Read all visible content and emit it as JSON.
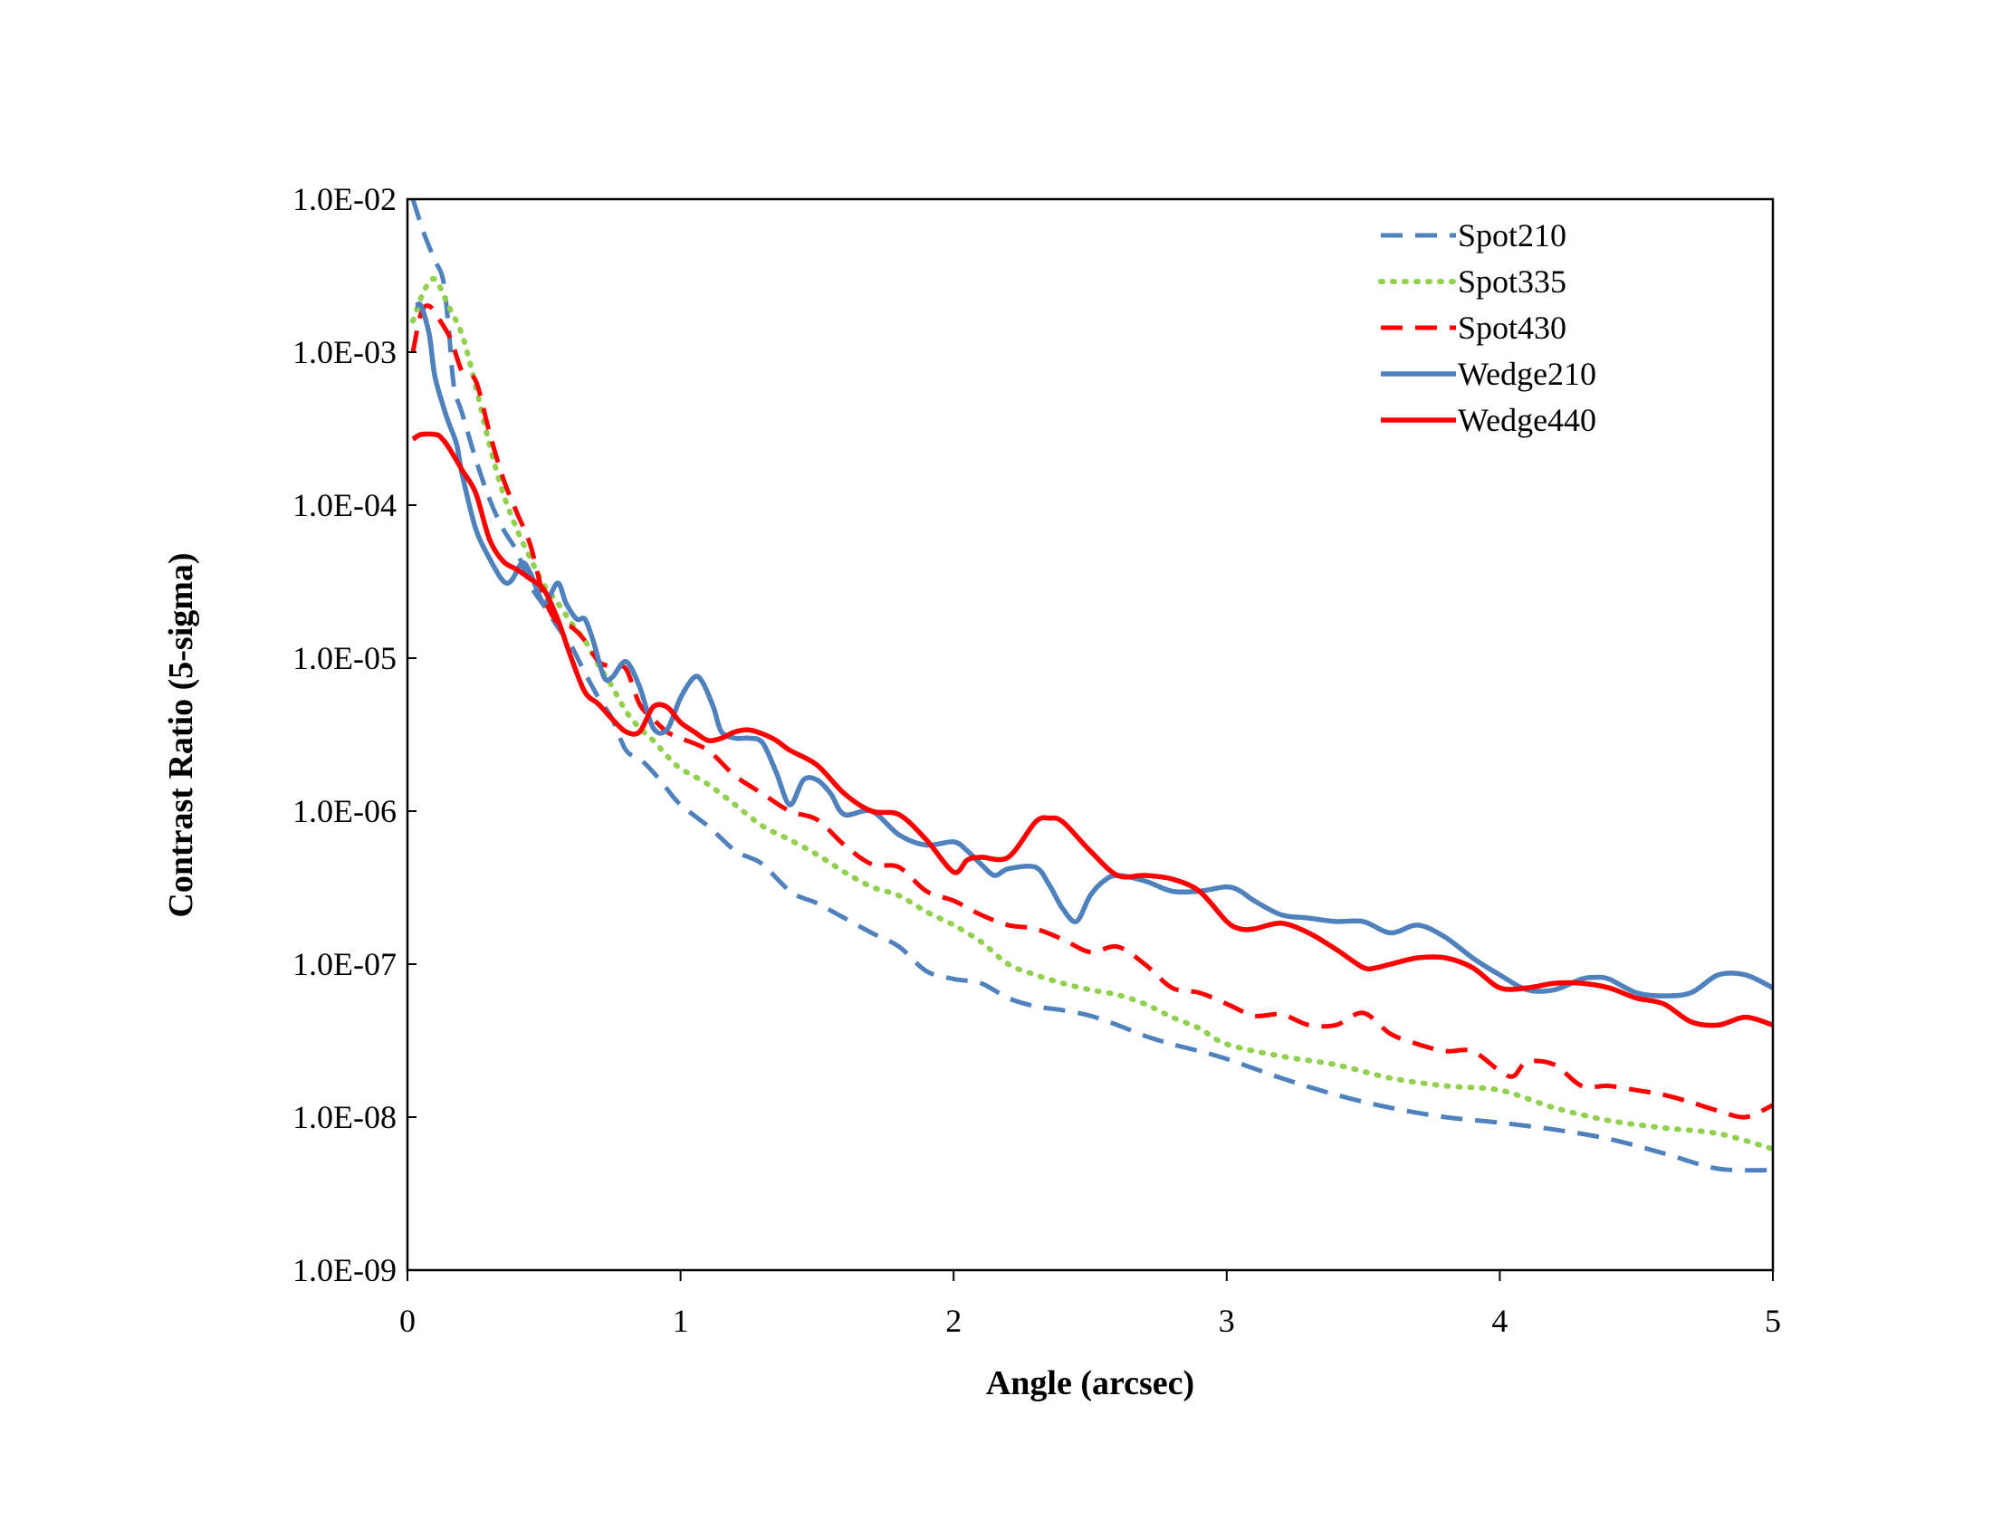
{
  "chart_data": {
    "type": "line",
    "title": "",
    "xlabel": "Angle (arcsec)",
    "ylabel": "Contrast Ratio (5-sigma)",
    "xlim": [
      0,
      5
    ],
    "ylim": [
      1e-09,
      0.01
    ],
    "yscale": "log",
    "grid": false,
    "legend_position": "top-right",
    "x_ticks": [
      {
        "value": 0,
        "label": "0"
      },
      {
        "value": 1,
        "label": "1"
      },
      {
        "value": 2,
        "label": "2"
      },
      {
        "value": 3,
        "label": "3"
      },
      {
        "value": 4,
        "label": "4"
      },
      {
        "value": 5,
        "label": "5"
      }
    ],
    "y_ticks": [
      {
        "value": 0.01,
        "label": "1.0E-02"
      },
      {
        "value": 0.001,
        "label": "1.0E-03"
      },
      {
        "value": 0.0001,
        "label": "1.0E-04"
      },
      {
        "value": 1e-05,
        "label": "1.0E-05"
      },
      {
        "value": 1e-06,
        "label": "1.0E-06"
      },
      {
        "value": 1e-07,
        "label": "1.0E-07"
      },
      {
        "value": 1e-08,
        "label": "1.0E-08"
      },
      {
        "value": 1e-09,
        "label": "1.0E-09"
      }
    ],
    "series": [
      {
        "name": "Spot210",
        "color": "#4F81BD",
        "style": "dashed",
        "x": [
          0.02,
          0.06,
          0.1,
          0.13,
          0.15,
          0.17,
          0.2,
          0.25,
          0.3,
          0.35,
          0.4,
          0.45,
          0.5,
          0.55,
          0.6,
          0.65,
          0.7,
          0.75,
          0.8,
          0.85,
          0.9,
          0.95,
          1.0,
          1.1,
          1.2,
          1.25,
          1.3,
          1.4,
          1.45,
          1.5,
          1.6,
          1.7,
          1.8,
          1.9,
          2.0,
          2.1,
          2.2,
          2.3,
          2.4,
          2.5,
          2.6,
          2.7,
          2.8,
          2.9,
          3.0,
          3.2,
          3.4,
          3.6,
          3.8,
          4.0,
          4.2,
          4.4,
          4.6,
          4.8,
          5.0
        ],
        "y": [
          0.01,
          0.006,
          0.004,
          0.003,
          0.0015,
          0.0006,
          0.0004,
          0.0002,
          0.00011,
          7e-05,
          5e-05,
          3e-05,
          2.2e-05,
          1.6e-05,
          1.2e-05,
          8e-06,
          5.5e-06,
          4e-06,
          2.5e-06,
          2.2e-06,
          1.8e-06,
          1.4e-06,
          1.1e-06,
          8e-07,
          5.5e-07,
          5e-07,
          4.5e-07,
          3e-07,
          2.7e-07,
          2.5e-07,
          2e-07,
          1.6e-07,
          1.3e-07,
          9e-08,
          8e-08,
          7.5e-08,
          6e-08,
          5.3e-08,
          5e-08,
          4.6e-08,
          4e-08,
          3.4e-08,
          3e-08,
          2.7e-08,
          2.4e-08,
          1.8e-08,
          1.4e-08,
          1.15e-08,
          1e-08,
          9.2e-09,
          8.3e-09,
          7.2e-09,
          5.8e-09,
          4.6e-09,
          4.5e-09
        ]
      },
      {
        "name": "Spot335",
        "color": "#92D050",
        "style": "dotted",
        "x": [
          0.02,
          0.06,
          0.1,
          0.15,
          0.2,
          0.25,
          0.3,
          0.35,
          0.4,
          0.45,
          0.5,
          0.55,
          0.6,
          0.65,
          0.7,
          0.75,
          0.8,
          0.85,
          0.9,
          0.95,
          1.0,
          1.1,
          1.2,
          1.3,
          1.4,
          1.5,
          1.6,
          1.7,
          1.8,
          1.9,
          2.0,
          2.1,
          2.2,
          2.3,
          2.4,
          2.5,
          2.6,
          2.7,
          2.8,
          2.9,
          3.0,
          3.2,
          3.4,
          3.6,
          3.8,
          4.0,
          4.2,
          4.4,
          4.6,
          4.8,
          5.0
        ],
        "y": [
          0.0016,
          0.0025,
          0.003,
          0.002,
          0.0013,
          0.0006,
          0.00025,
          0.00012,
          7e-05,
          4.5e-05,
          3e-05,
          2.3e-05,
          1.7e-05,
          1.3e-05,
          9e-06,
          6.5e-06,
          4.5e-06,
          3.5e-06,
          2.9e-06,
          2.3e-06,
          1.9e-06,
          1.5e-06,
          1.1e-06,
          8e-07,
          6.5e-07,
          5.2e-07,
          4e-07,
          3.2e-07,
          2.8e-07,
          2.2e-07,
          1.8e-07,
          1.4e-07,
          1e-07,
          8.5e-08,
          7.5e-08,
          6.8e-08,
          6.3e-08,
          5.5e-08,
          4.5e-08,
          3.8e-08,
          3e-08,
          2.5e-08,
          2.2e-08,
          1.8e-08,
          1.6e-08,
          1.5e-08,
          1.15e-08,
          9.5e-09,
          8.5e-09,
          7.8e-09,
          6.2e-09
        ]
      },
      {
        "name": "Spot430",
        "color": "#FF0000",
        "style": "dashed",
        "x": [
          0.02,
          0.05,
          0.08,
          0.12,
          0.16,
          0.2,
          0.25,
          0.3,
          0.35,
          0.4,
          0.45,
          0.5,
          0.55,
          0.6,
          0.65,
          0.7,
          0.75,
          0.8,
          0.85,
          0.9,
          0.95,
          1.0,
          1.1,
          1.2,
          1.3,
          1.4,
          1.5,
          1.6,
          1.7,
          1.8,
          1.9,
          2.0,
          2.1,
          2.2,
          2.3,
          2.4,
          2.5,
          2.6,
          2.7,
          2.8,
          2.9,
          3.0,
          3.1,
          3.2,
          3.3,
          3.4,
          3.5,
          3.6,
          3.7,
          3.8,
          3.9,
          4.0,
          4.05,
          4.1,
          4.2,
          4.3,
          4.4,
          4.5,
          4.6,
          4.7,
          4.8,
          4.9,
          5.0
        ],
        "y": [
          0.001,
          0.0018,
          0.002,
          0.0016,
          0.0012,
          0.00075,
          0.00065,
          0.0003,
          0.00015,
          9e-05,
          5.5e-05,
          2.5e-05,
          1.7e-05,
          1.6e-05,
          1.3e-05,
          9.5e-06,
          8.8e-06,
          8.5e-06,
          5e-06,
          4e-06,
          3.3e-06,
          3e-06,
          2.5e-06,
          1.7e-06,
          1.3e-06,
          1e-06,
          8.8e-07,
          6e-07,
          4.5e-07,
          4.3e-07,
          3e-07,
          2.6e-07,
          2.1e-07,
          1.8e-07,
          1.7e-07,
          1.45e-07,
          1.2e-07,
          1.3e-07,
          1e-07,
          7e-08,
          6.5e-08,
          5.5e-08,
          4.6e-08,
          4.7e-08,
          4e-08,
          4e-08,
          4.8e-08,
          3.5e-08,
          3e-08,
          2.7e-08,
          2.7e-08,
          2e-08,
          1.85e-08,
          2.3e-08,
          2.2e-08,
          1.6e-08,
          1.6e-08,
          1.5e-08,
          1.4e-08,
          1.25e-08,
          1.1e-08,
          1e-08,
          1.2e-08
        ]
      },
      {
        "name": "Wedge210",
        "color": "#4F81BD",
        "style": "solid",
        "x": [
          0.03,
          0.05,
          0.08,
          0.1,
          0.13,
          0.15,
          0.18,
          0.2,
          0.25,
          0.3,
          0.35,
          0.38,
          0.42,
          0.45,
          0.5,
          0.55,
          0.58,
          0.62,
          0.65,
          0.68,
          0.72,
          0.75,
          0.8,
          0.85,
          0.9,
          0.95,
          1.0,
          1.05,
          1.08,
          1.12,
          1.15,
          1.2,
          1.25,
          1.3,
          1.35,
          1.4,
          1.45,
          1.5,
          1.55,
          1.6,
          1.7,
          1.8,
          1.9,
          2.0,
          2.05,
          2.1,
          2.15,
          2.2,
          2.3,
          2.35,
          2.4,
          2.45,
          2.5,
          2.55,
          2.6,
          2.7,
          2.8,
          2.9,
          3.0,
          3.05,
          3.1,
          3.2,
          3.3,
          3.4,
          3.5,
          3.6,
          3.7,
          3.8,
          3.9,
          4.0,
          4.1,
          4.2,
          4.3,
          4.35,
          4.4,
          4.5,
          4.6,
          4.7,
          4.8,
          4.9,
          5.0
        ],
        "y": [
          0.002,
          0.002,
          0.0013,
          0.0007,
          0.00045,
          0.00035,
          0.00025,
          0.00016,
          7e-05,
          4.5e-05,
          3.2e-05,
          3.2e-05,
          4.2e-05,
          3.6e-05,
          2.3e-05,
          3.1e-05,
          2.3e-05,
          1.8e-05,
          1.8e-05,
          1.3e-05,
          7.5e-06,
          7.5e-06,
          9.5e-06,
          6.5e-06,
          3.5e-06,
          3.4e-06,
          5.5e-06,
          7.5e-06,
          7e-06,
          4.8e-06,
          3.3e-06,
          3e-06,
          3e-06,
          2.8e-06,
          1.8e-06,
          1.1e-06,
          1.6e-06,
          1.6e-06,
          1.3e-06,
          9.5e-07,
          1e-06,
          7e-07,
          6e-07,
          6.3e-07,
          5.5e-07,
          4.5e-07,
          3.8e-07,
          4.2e-07,
          4.3e-07,
          3.3e-07,
          2.3e-07,
          1.9e-07,
          2.8e-07,
          3.5e-07,
          3.8e-07,
          3.5e-07,
          3e-07,
          3e-07,
          3.2e-07,
          3e-07,
          2.6e-07,
          2.1e-07,
          2e-07,
          1.9e-07,
          1.9e-07,
          1.6e-07,
          1.8e-07,
          1.5e-07,
          1.1e-07,
          8.5e-08,
          6.8e-08,
          6.8e-08,
          8e-08,
          8.2e-08,
          8e-08,
          6.5e-08,
          6.2e-08,
          6.5e-08,
          8.5e-08,
          8.5e-08,
          7e-08
        ]
      },
      {
        "name": "Wedge440",
        "color": "#FF0000",
        "style": "solid",
        "x": [
          0.02,
          0.05,
          0.1,
          0.12,
          0.15,
          0.2,
          0.25,
          0.3,
          0.35,
          0.4,
          0.45,
          0.5,
          0.55,
          0.6,
          0.65,
          0.7,
          0.75,
          0.8,
          0.85,
          0.9,
          0.95,
          1.0,
          1.05,
          1.1,
          1.15,
          1.2,
          1.25,
          1.3,
          1.35,
          1.4,
          1.5,
          1.6,
          1.7,
          1.8,
          1.9,
          2.0,
          2.05,
          2.1,
          2.2,
          2.3,
          2.35,
          2.4,
          2.5,
          2.6,
          2.7,
          2.8,
          2.9,
          3.0,
          3.05,
          3.1,
          3.2,
          3.3,
          3.4,
          3.5,
          3.55,
          3.6,
          3.7,
          3.8,
          3.9,
          4.0,
          4.1,
          4.2,
          4.3,
          4.4,
          4.5,
          4.6,
          4.7,
          4.8,
          4.9,
          5.0
        ],
        "y": [
          0.00027,
          0.00029,
          0.00029,
          0.00028,
          0.00024,
          0.00017,
          0.00012,
          6e-05,
          4.3e-05,
          3.8e-05,
          3.3e-05,
          2.8e-05,
          1.8e-05,
          1e-05,
          6e-06,
          5e-06,
          4e-06,
          3.3e-06,
          3.3e-06,
          4.8e-06,
          4.8e-06,
          3.8e-06,
          3.3e-06,
          2.9e-06,
          3e-06,
          3.3e-06,
          3.4e-06,
          3.2e-06,
          2.9e-06,
          2.5e-06,
          2e-06,
          1.3e-06,
          1e-06,
          9.5e-07,
          6.5e-07,
          4e-07,
          4.8e-07,
          5e-07,
          5e-07,
          8.5e-07,
          9e-07,
          8.5e-07,
          5.5e-07,
          3.8e-07,
          3.8e-07,
          3.6e-07,
          3e-07,
          1.9e-07,
          1.7e-07,
          1.7e-07,
          1.85e-07,
          1.6e-07,
          1.25e-07,
          9.5e-08,
          9.5e-08,
          1e-07,
          1.1e-07,
          1.1e-07,
          9.5e-08,
          7e-08,
          7e-08,
          7.5e-08,
          7.5e-08,
          7e-08,
          6e-08,
          5.5e-08,
          4.2e-08,
          4e-08,
          4.5e-08,
          4e-08
        ]
      }
    ]
  }
}
